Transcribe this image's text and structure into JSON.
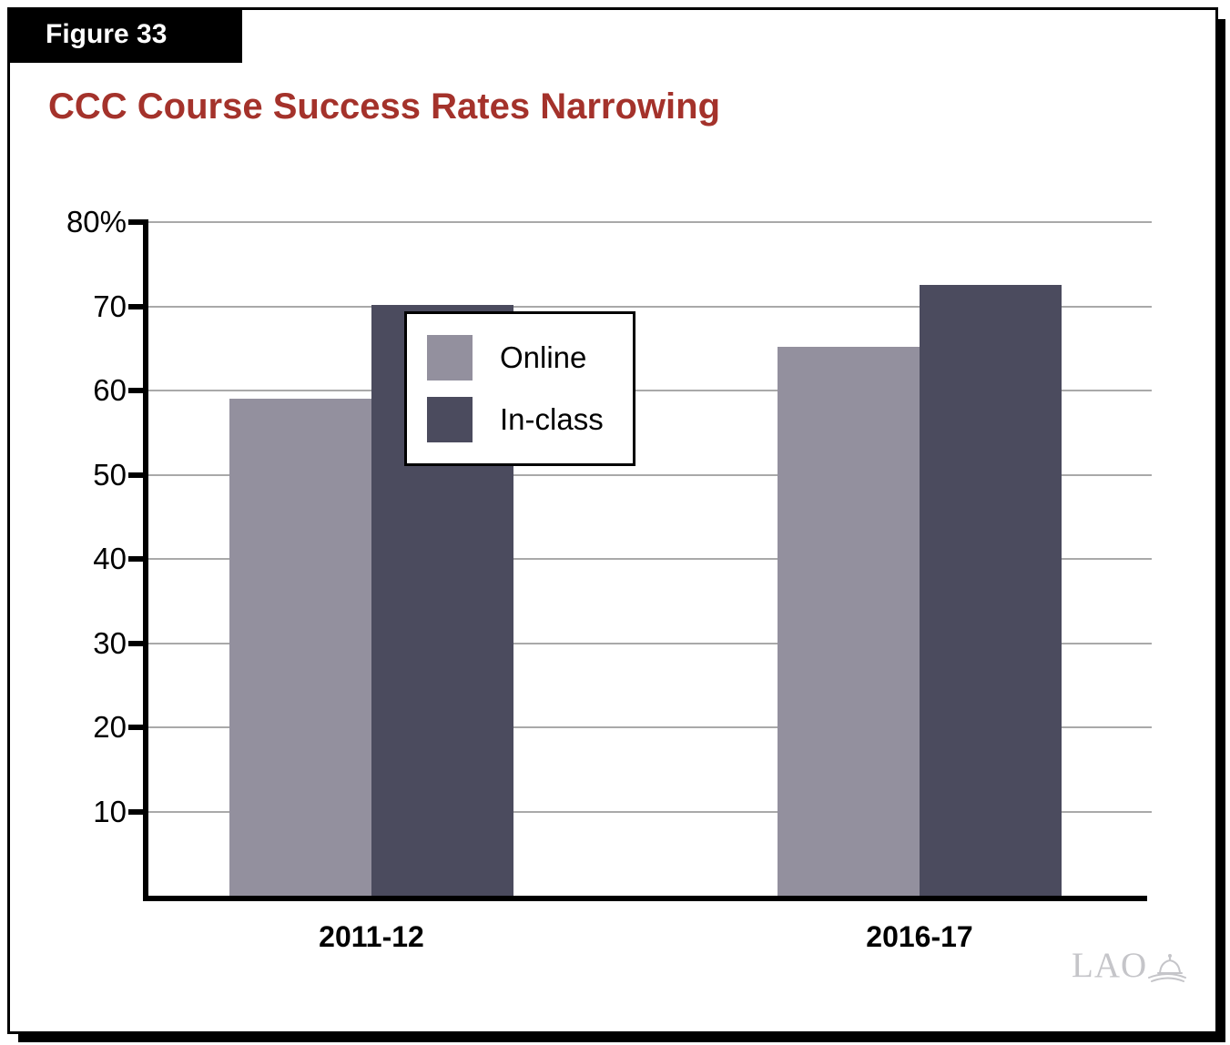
{
  "figure_label": "Figure 33",
  "title": "CCC Course Success Rates Narrowing",
  "logo": {
    "text": "LAO",
    "icon": "capitol-dome-icon"
  },
  "colors": {
    "title_red": "#A4322B",
    "online_bar": "#93909E",
    "inclass_bar": "#4B4B5E",
    "gridline_gray": "#A9A9A9",
    "frame_black": "#000000",
    "logo_gray": "#C5C5C9"
  },
  "chart_data": {
    "type": "bar",
    "title": "CCC Course Success Rates Narrowing",
    "categories": [
      "2011-12",
      "2016-17"
    ],
    "series": [
      {
        "name": "Online",
        "values": [
          59,
          65.2
        ],
        "color": "#93909E"
      },
      {
        "name": "In-class",
        "values": [
          70.2,
          72.5
        ],
        "color": "#4B4B5E"
      }
    ],
    "xlabel": "",
    "ylabel": "",
    "ylim": [
      0,
      80
    ],
    "yticks": [
      {
        "value": 80,
        "label": "80%"
      },
      {
        "value": 70,
        "label": "70"
      },
      {
        "value": 60,
        "label": "60"
      },
      {
        "value": 50,
        "label": "50"
      },
      {
        "value": 40,
        "label": "40"
      },
      {
        "value": 30,
        "label": "30"
      },
      {
        "value": 20,
        "label": "20"
      },
      {
        "value": 10,
        "label": "10"
      }
    ],
    "grid": true,
    "legend_position": "center"
  }
}
